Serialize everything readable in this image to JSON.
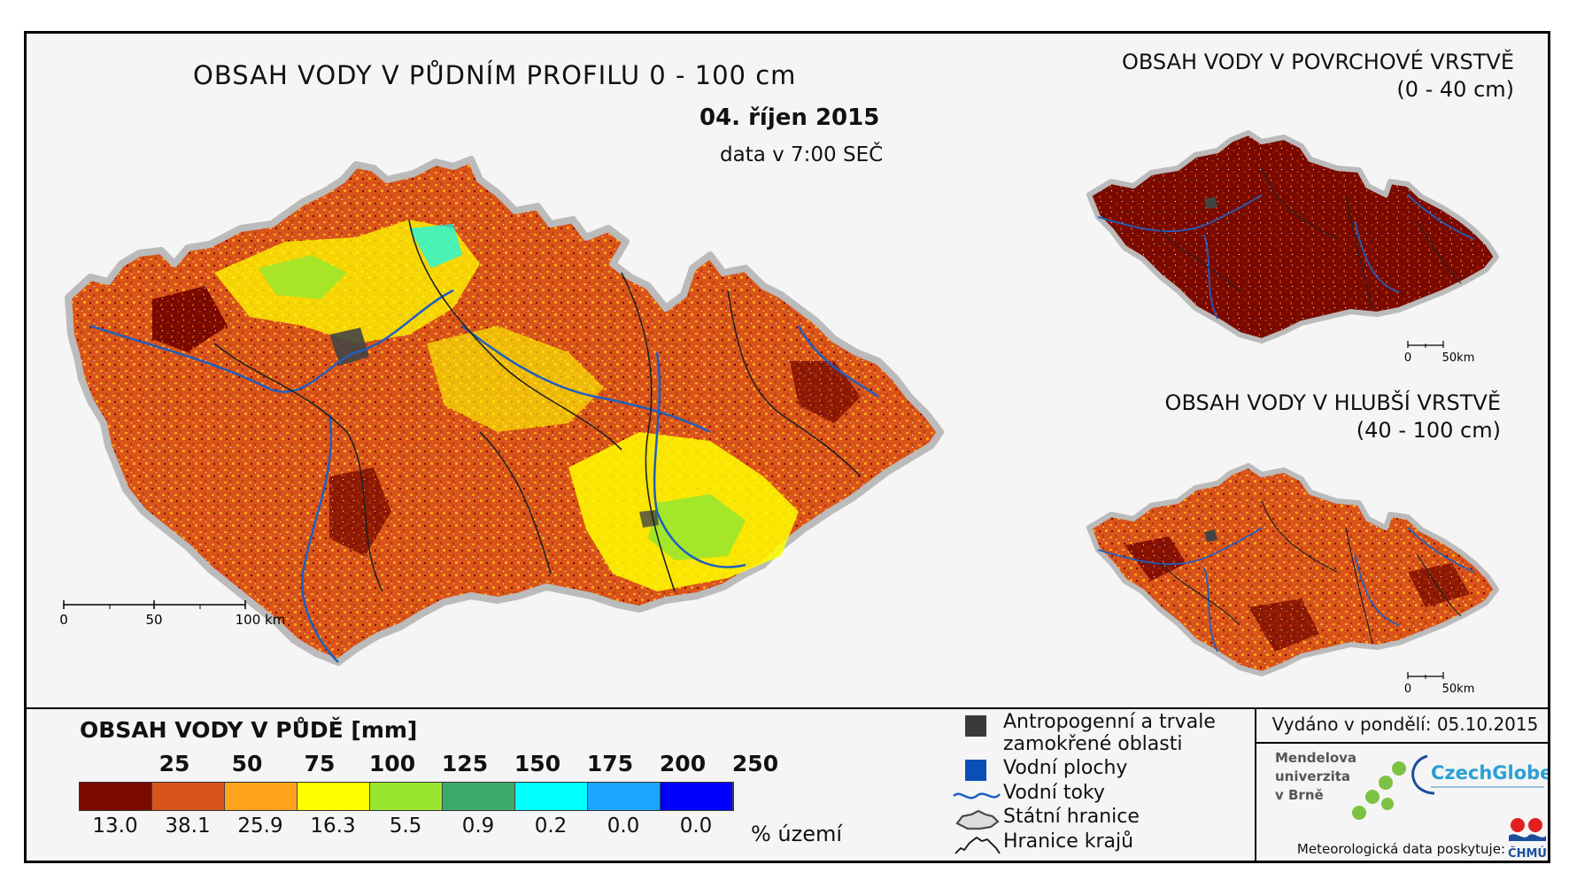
{
  "main_map": {
    "title": "OBSAH VODY V PŮDNÍM PROFILU 0 - 100 cm",
    "date": "04. říjen 2015",
    "data_time": "data v 7:00 SEČ",
    "scale": [
      "0",
      "50",
      "100 km"
    ]
  },
  "sub_map_top": {
    "title_line1": "OBSAH VODY V POVRCHOVÉ VRSTVĚ",
    "title_line2": "(0 - 40 cm)",
    "scale": [
      "0",
      "50km"
    ]
  },
  "sub_map_bottom": {
    "title_line1": "OBSAH VODY V HLUBŠÍ VRSTVĚ",
    "title_line2": "(40 - 100 cm)",
    "scale": [
      "0",
      "50km"
    ]
  },
  "legend": {
    "title": "OBSAH VODY V PŮDĚ [mm]",
    "thresholds": [
      "25",
      "50",
      "75",
      "100",
      "125",
      "150",
      "175",
      "200",
      "250"
    ],
    "classes": [
      {
        "color": "#7a0a00",
        "percent": "13.0"
      },
      {
        "color": "#d9541a",
        "percent": "38.1"
      },
      {
        "color": "#ffa31a",
        "percent": "25.9"
      },
      {
        "color": "#ffff00",
        "percent": "16.3"
      },
      {
        "color": "#9ae62e",
        "percent": "5.5"
      },
      {
        "color": "#3cab6a",
        "percent": "0.9"
      },
      {
        "color": "#00ffff",
        "percent": "0.2"
      },
      {
        "color": "#1aa6ff",
        "percent": "0.0"
      },
      {
        "color": "#0000ff",
        "percent": "0.0"
      }
    ],
    "unit": "% území"
  },
  "symbols": [
    {
      "label_lines": [
        "Antropogenní a trvale",
        "zamokřené oblasti"
      ],
      "icon": "dark-square"
    },
    {
      "label_lines": [
        "Vodní plochy"
      ],
      "icon": "blue-square"
    },
    {
      "label_lines": [
        "Vodní toky"
      ],
      "icon": "river-line"
    },
    {
      "label_lines": [
        "Státní hranice"
      ],
      "icon": "state-border"
    },
    {
      "label_lines": [
        "Hranice krajů"
      ],
      "icon": "region-border"
    }
  ],
  "issued": "Vydáno v pondělí: 05.10.2015",
  "logos": {
    "mendel_lines": [
      "Mendelova",
      "univerzita",
      "v Brně"
    ],
    "czechglobe_text": "CzechGlobe",
    "chmu_text": "ČHMÚ"
  },
  "provider": "Meteorologická data poskytuje:"
}
